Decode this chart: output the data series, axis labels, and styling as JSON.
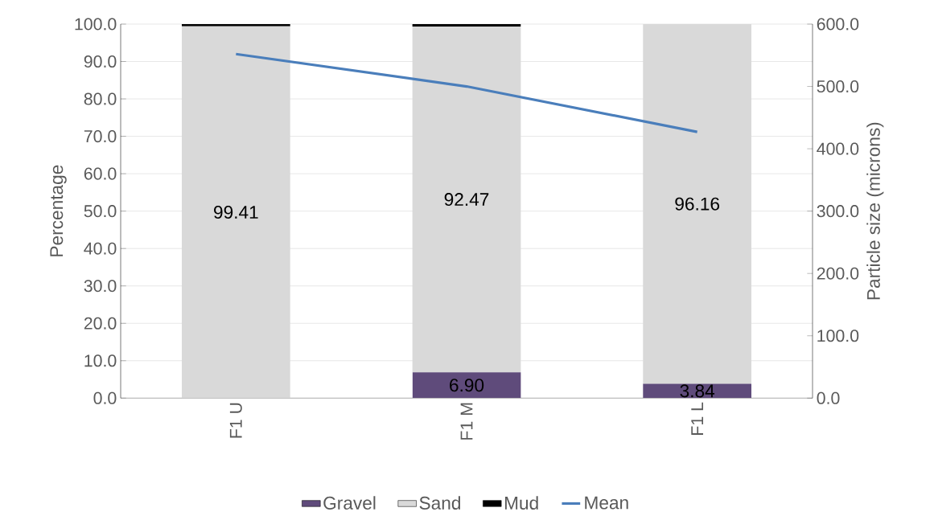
{
  "chart_data": {
    "type": "bar",
    "stacked": true,
    "ylabel": "Percentage",
    "y2label": "Particle size (microns)",
    "categories": [
      "F1 U",
      "F1 M",
      "F1 L"
    ],
    "series": [
      {
        "name": "Gravel",
        "color": "#5f4b7b",
        "values": [
          0,
          6.9,
          3.84
        ],
        "value_labels": [
          null,
          "6.90",
          "3.84"
        ]
      },
      {
        "name": "Sand",
        "color": "#d9d9d9",
        "values": [
          99.41,
          92.47,
          96.16
        ],
        "value_labels": [
          "99.41",
          "92.47",
          "96.16"
        ]
      },
      {
        "name": "Mud",
        "color": "#000000",
        "values": [
          0.59,
          0.63,
          0
        ]
      },
      {
        "name": "Mean",
        "type": "line",
        "axis": "y2",
        "color": "#4a7ebb",
        "values": [
          552,
          500,
          427
        ]
      }
    ],
    "ylim": [
      0,
      100
    ],
    "yticks": [
      {
        "value": 0,
        "label": "0.0"
      },
      {
        "value": 10,
        "label": "10.0"
      },
      {
        "value": 20,
        "label": "20.0"
      },
      {
        "value": 30,
        "label": "30.0"
      },
      {
        "value": 40,
        "label": "40.0"
      },
      {
        "value": 50,
        "label": "50.0"
      },
      {
        "value": 60,
        "label": "60.0"
      },
      {
        "value": 70,
        "label": "70.0"
      },
      {
        "value": 80,
        "label": "80.0"
      },
      {
        "value": 90,
        "label": "90.0"
      },
      {
        "value": 100,
        "label": "100.0"
      }
    ],
    "y2lim": [
      0,
      600
    ],
    "y2ticks": [
      {
        "value": 0,
        "label": "0.0"
      },
      {
        "value": 100,
        "label": "100.0"
      },
      {
        "value": 200,
        "label": "200.0"
      },
      {
        "value": 300,
        "label": "300.0"
      },
      {
        "value": 400,
        "label": "400.0"
      },
      {
        "value": 500,
        "label": "500.0"
      },
      {
        "value": 600,
        "label": "600.0"
      }
    ],
    "grid": "y",
    "legend": "bottom"
  }
}
